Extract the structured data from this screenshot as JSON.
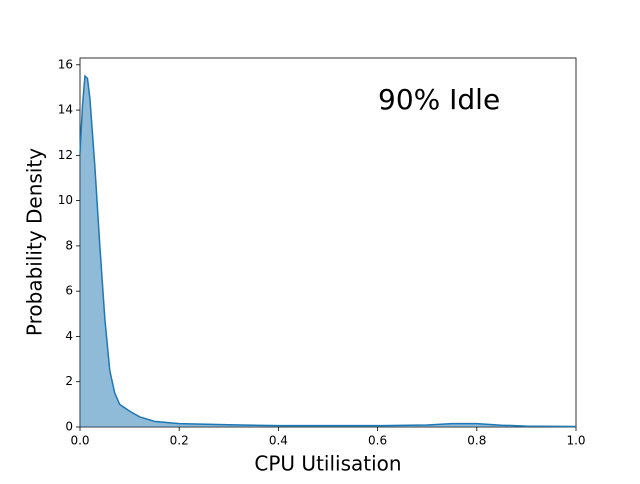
{
  "chart_data": {
    "type": "area",
    "annotation": "90% Idle",
    "xlabel": "CPU Utilisation",
    "ylabel": "Probability Density",
    "color": "#1f77b4",
    "x": [
      0,
      0.005,
      0.01,
      0.015,
      0.02,
      0.03,
      0.04,
      0.05,
      0.06,
      0.07,
      0.08,
      0.1,
      0.12,
      0.15,
      0.2,
      0.3,
      0.4,
      0.5,
      0.6,
      0.7,
      0.75,
      0.8,
      0.85,
      0.9,
      1.0
    ],
    "values": [
      12.1,
      14.2,
      15.5,
      15.4,
      14.5,
      11.5,
      8.0,
      4.8,
      2.5,
      1.5,
      1.0,
      0.7,
      0.45,
      0.25,
      0.15,
      0.1,
      0.06,
      0.06,
      0.06,
      0.09,
      0.15,
      0.15,
      0.08,
      0.04,
      0.02
    ],
    "xlim": [
      0,
      1
    ],
    "xticks": [
      {
        "value": 0,
        "label": "0.0"
      },
      0.2,
      0.4,
      0.6,
      0.8,
      {
        "value": 1,
        "label": "1.0"
      }
    ],
    "ylim": [
      0,
      16.3
    ],
    "yticks": [
      0,
      2,
      4,
      6,
      8,
      10,
      12,
      14,
      16
    ]
  }
}
